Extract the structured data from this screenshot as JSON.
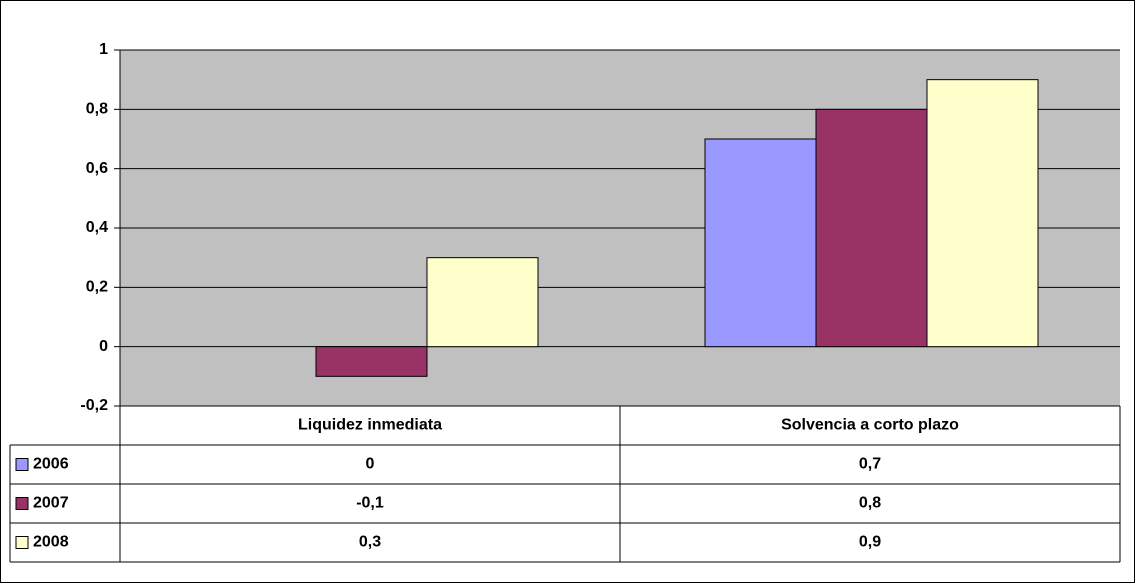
{
  "chart_data": {
    "type": "bar",
    "categories": [
      "Liquidez inmediata",
      "Solvencia a corto plazo"
    ],
    "series": [
      {
        "name": "2006",
        "color": "#9999ff",
        "values": [
          0,
          0.7
        ],
        "value_labels": [
          "0",
          "0,7"
        ]
      },
      {
        "name": "2007",
        "color": "#993366",
        "values": [
          -0.1,
          0.8
        ],
        "value_labels": [
          "-0,1",
          "0,8"
        ]
      },
      {
        "name": "2008",
        "color": "#ffffcc",
        "values": [
          0.3,
          0.9
        ],
        "value_labels": [
          "0,3",
          "0,9"
        ]
      }
    ],
    "ylim": [
      -0.2,
      1
    ],
    "yticks": [
      {
        "value": -0.2,
        "label": "-0,2"
      },
      0,
      {
        "value": 0.2,
        "label": "0,2"
      },
      {
        "value": 0.4,
        "label": "0,4"
      },
      {
        "value": 0.6,
        "label": "0,6"
      },
      {
        "value": 0.8,
        "label": "0,8"
      },
      1
    ],
    "grid": true,
    "plot_background": "#c0c0c0"
  }
}
